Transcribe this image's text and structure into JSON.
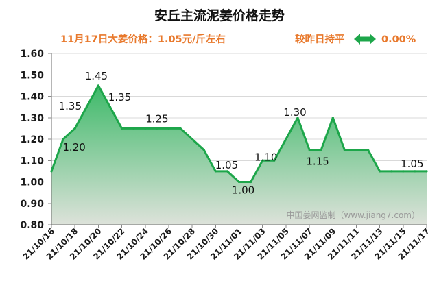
{
  "header": {
    "price_text": "11月17日大姜价格：1.05元/斤左右",
    "change_label": "较昨日持平",
    "change_icon": "double-arrow-icon",
    "change_percent": "0.00%"
  },
  "colors": {
    "accent_text": "#E8782B",
    "line": "#1DA64A",
    "fill_top": "#38B865",
    "fill_bottom": "#DDE2DA",
    "trend_icon": "#1DA64A"
  },
  "watermark": "中国姜网监制（www.jiang7.com）",
  "chart_data": {
    "type": "area",
    "title": "安丘主流泥姜价格走势",
    "xlabel": "",
    "ylabel": "",
    "ylim": [
      0.8,
      1.6
    ],
    "y_ticks": [
      "1.60",
      "1.50",
      "1.40",
      "1.30",
      "1.20",
      "1.10",
      "1.00",
      "0.90",
      "0.80"
    ],
    "x_tick_labels": [
      "21/10/16",
      "21/10/18",
      "21/10/20",
      "21/10/22",
      "21/10/24",
      "21/10/26",
      "21/10/28",
      "21/10/30",
      "21/11/01",
      "21/11/03",
      "21/11/05",
      "21/11/07",
      "21/11/09",
      "21/11/11",
      "21/11/13",
      "21/11/15",
      "21/11/17"
    ],
    "x": [
      "21/10/16",
      "21/10/17",
      "21/10/18",
      "21/10/19",
      "21/10/20",
      "21/10/21",
      "21/10/22",
      "21/10/23",
      "21/10/24",
      "21/10/25",
      "21/10/26",
      "21/10/27",
      "21/10/28",
      "21/10/29",
      "21/10/30",
      "21/10/31",
      "21/11/01",
      "21/11/02",
      "21/11/03",
      "21/11/04",
      "21/11/05",
      "21/11/06",
      "21/11/07",
      "21/11/08",
      "21/11/09",
      "21/11/10",
      "21/11/11",
      "21/11/12",
      "21/11/13",
      "21/11/14",
      "21/11/15",
      "21/11/16",
      "21/11/17"
    ],
    "series": [
      {
        "values": [
          1.05,
          1.2,
          1.25,
          1.35,
          1.45,
          1.35,
          1.25,
          1.25,
          1.25,
          1.25,
          1.25,
          1.25,
          1.2,
          1.15,
          1.05,
          1.05,
          1.0,
          1.0,
          1.1,
          1.1,
          1.2,
          1.3,
          1.15,
          1.15,
          1.3,
          1.15,
          1.15,
          1.15,
          1.05,
          1.05,
          1.05,
          1.05,
          1.05
        ]
      }
    ],
    "data_labels": [
      {
        "x": "21/10/17",
        "text": "1.20"
      },
      {
        "x": "21/10/19",
        "text": "1.35"
      },
      {
        "x": "21/10/20",
        "text": "1.45"
      },
      {
        "x": "21/10/21",
        "text": "1.35"
      },
      {
        "x": "21/10/25",
        "text": "1.25"
      },
      {
        "x": "21/10/31",
        "text": "1.05"
      },
      {
        "x": "21/11/01",
        "text": "1.00"
      },
      {
        "x": "21/11/03",
        "text": "1.10"
      },
      {
        "x": "21/11/06",
        "text": "1.30"
      },
      {
        "x": "21/11/07",
        "text": "1.15"
      },
      {
        "x": "21/11/15",
        "text": "1.05"
      }
    ],
    "grid": "horizontal",
    "legend": "none"
  }
}
